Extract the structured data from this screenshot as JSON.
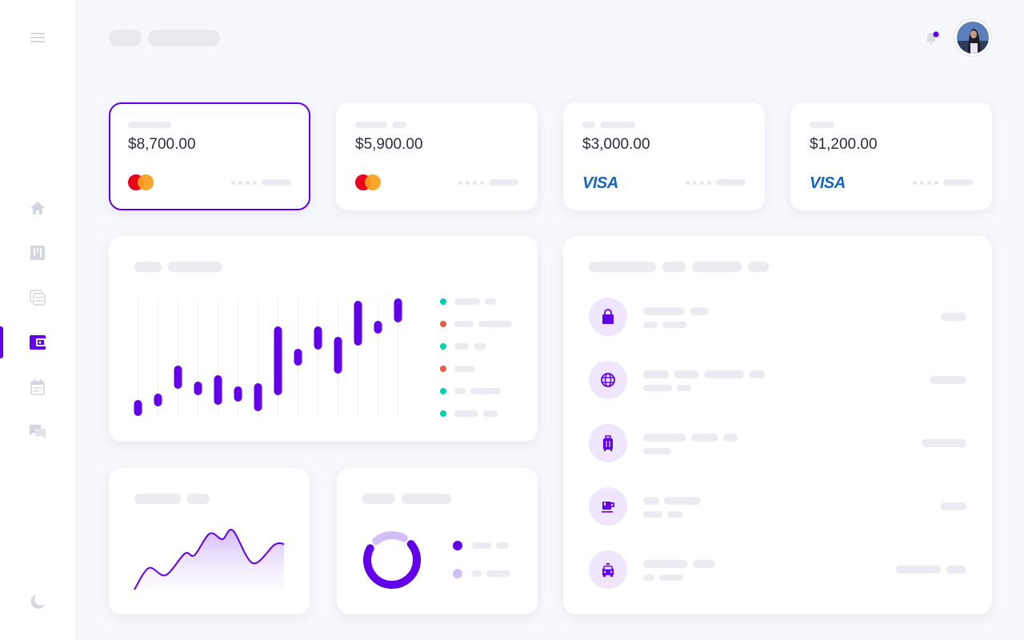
{
  "colors": {
    "accent": "#6200ea",
    "accent_light": "#efe6fd",
    "teal": "#00d0b0",
    "red": "#eb5a46",
    "skeleton": "#ebecf1"
  },
  "sidebar": {
    "items": [
      {
        "icon": "home-icon",
        "active": false
      },
      {
        "icon": "board-icon",
        "active": false
      },
      {
        "icon": "calendar-grid-icon",
        "active": false
      },
      {
        "icon": "wallet-icon",
        "active": true
      },
      {
        "icon": "event-icon",
        "active": false
      },
      {
        "icon": "chat-icon",
        "active": false
      }
    ],
    "menu_icon": "hamburger-icon",
    "bottom_icon": "moon-icon"
  },
  "header": {
    "notification_icon": "bell-icon",
    "has_notification": true,
    "avatar": "user-avatar"
  },
  "accounts": [
    {
      "amount": "$8,700.00",
      "brand": "mastercard",
      "selected": true
    },
    {
      "amount": "$5,900.00",
      "brand": "mastercard",
      "selected": false
    },
    {
      "amount": "$3,000.00",
      "brand": "VISA",
      "selected": false
    },
    {
      "amount": "$1,200.00",
      "brand": "VISA",
      "selected": false
    }
  ],
  "chart_data": [
    {
      "type": "candlestick-range",
      "ranges": [
        [
          0,
          20
        ],
        [
          12,
          28
        ],
        [
          34,
          63
        ],
        [
          26,
          43
        ],
        [
          14,
          51
        ],
        [
          18,
          37
        ],
        [
          6,
          41
        ],
        [
          26,
          112
        ],
        [
          63,
          84
        ],
        [
          83,
          112
        ],
        [
          53,
          99
        ],
        [
          88,
          144
        ],
        [
          103,
          119
        ],
        [
          117,
          147
        ]
      ],
      "legend_colors": [
        "#00d0b0",
        "#eb5a46",
        "#00d0b0",
        "#eb5a46",
        "#00d0b0",
        "#00d0b0"
      ]
    },
    {
      "type": "area",
      "values": [
        0,
        27,
        18,
        45,
        43,
        70,
        63,
        74,
        33,
        56,
        57
      ]
    },
    {
      "type": "pie",
      "values": [
        75,
        25
      ],
      "colors": [
        "#6200ea",
        "#d3bff7"
      ]
    }
  ],
  "transactions": [
    {
      "icon": "shopping-bag-icon"
    },
    {
      "icon": "globe-icon"
    },
    {
      "icon": "luggage-icon"
    },
    {
      "icon": "coffee-icon"
    },
    {
      "icon": "taxi-icon"
    }
  ]
}
